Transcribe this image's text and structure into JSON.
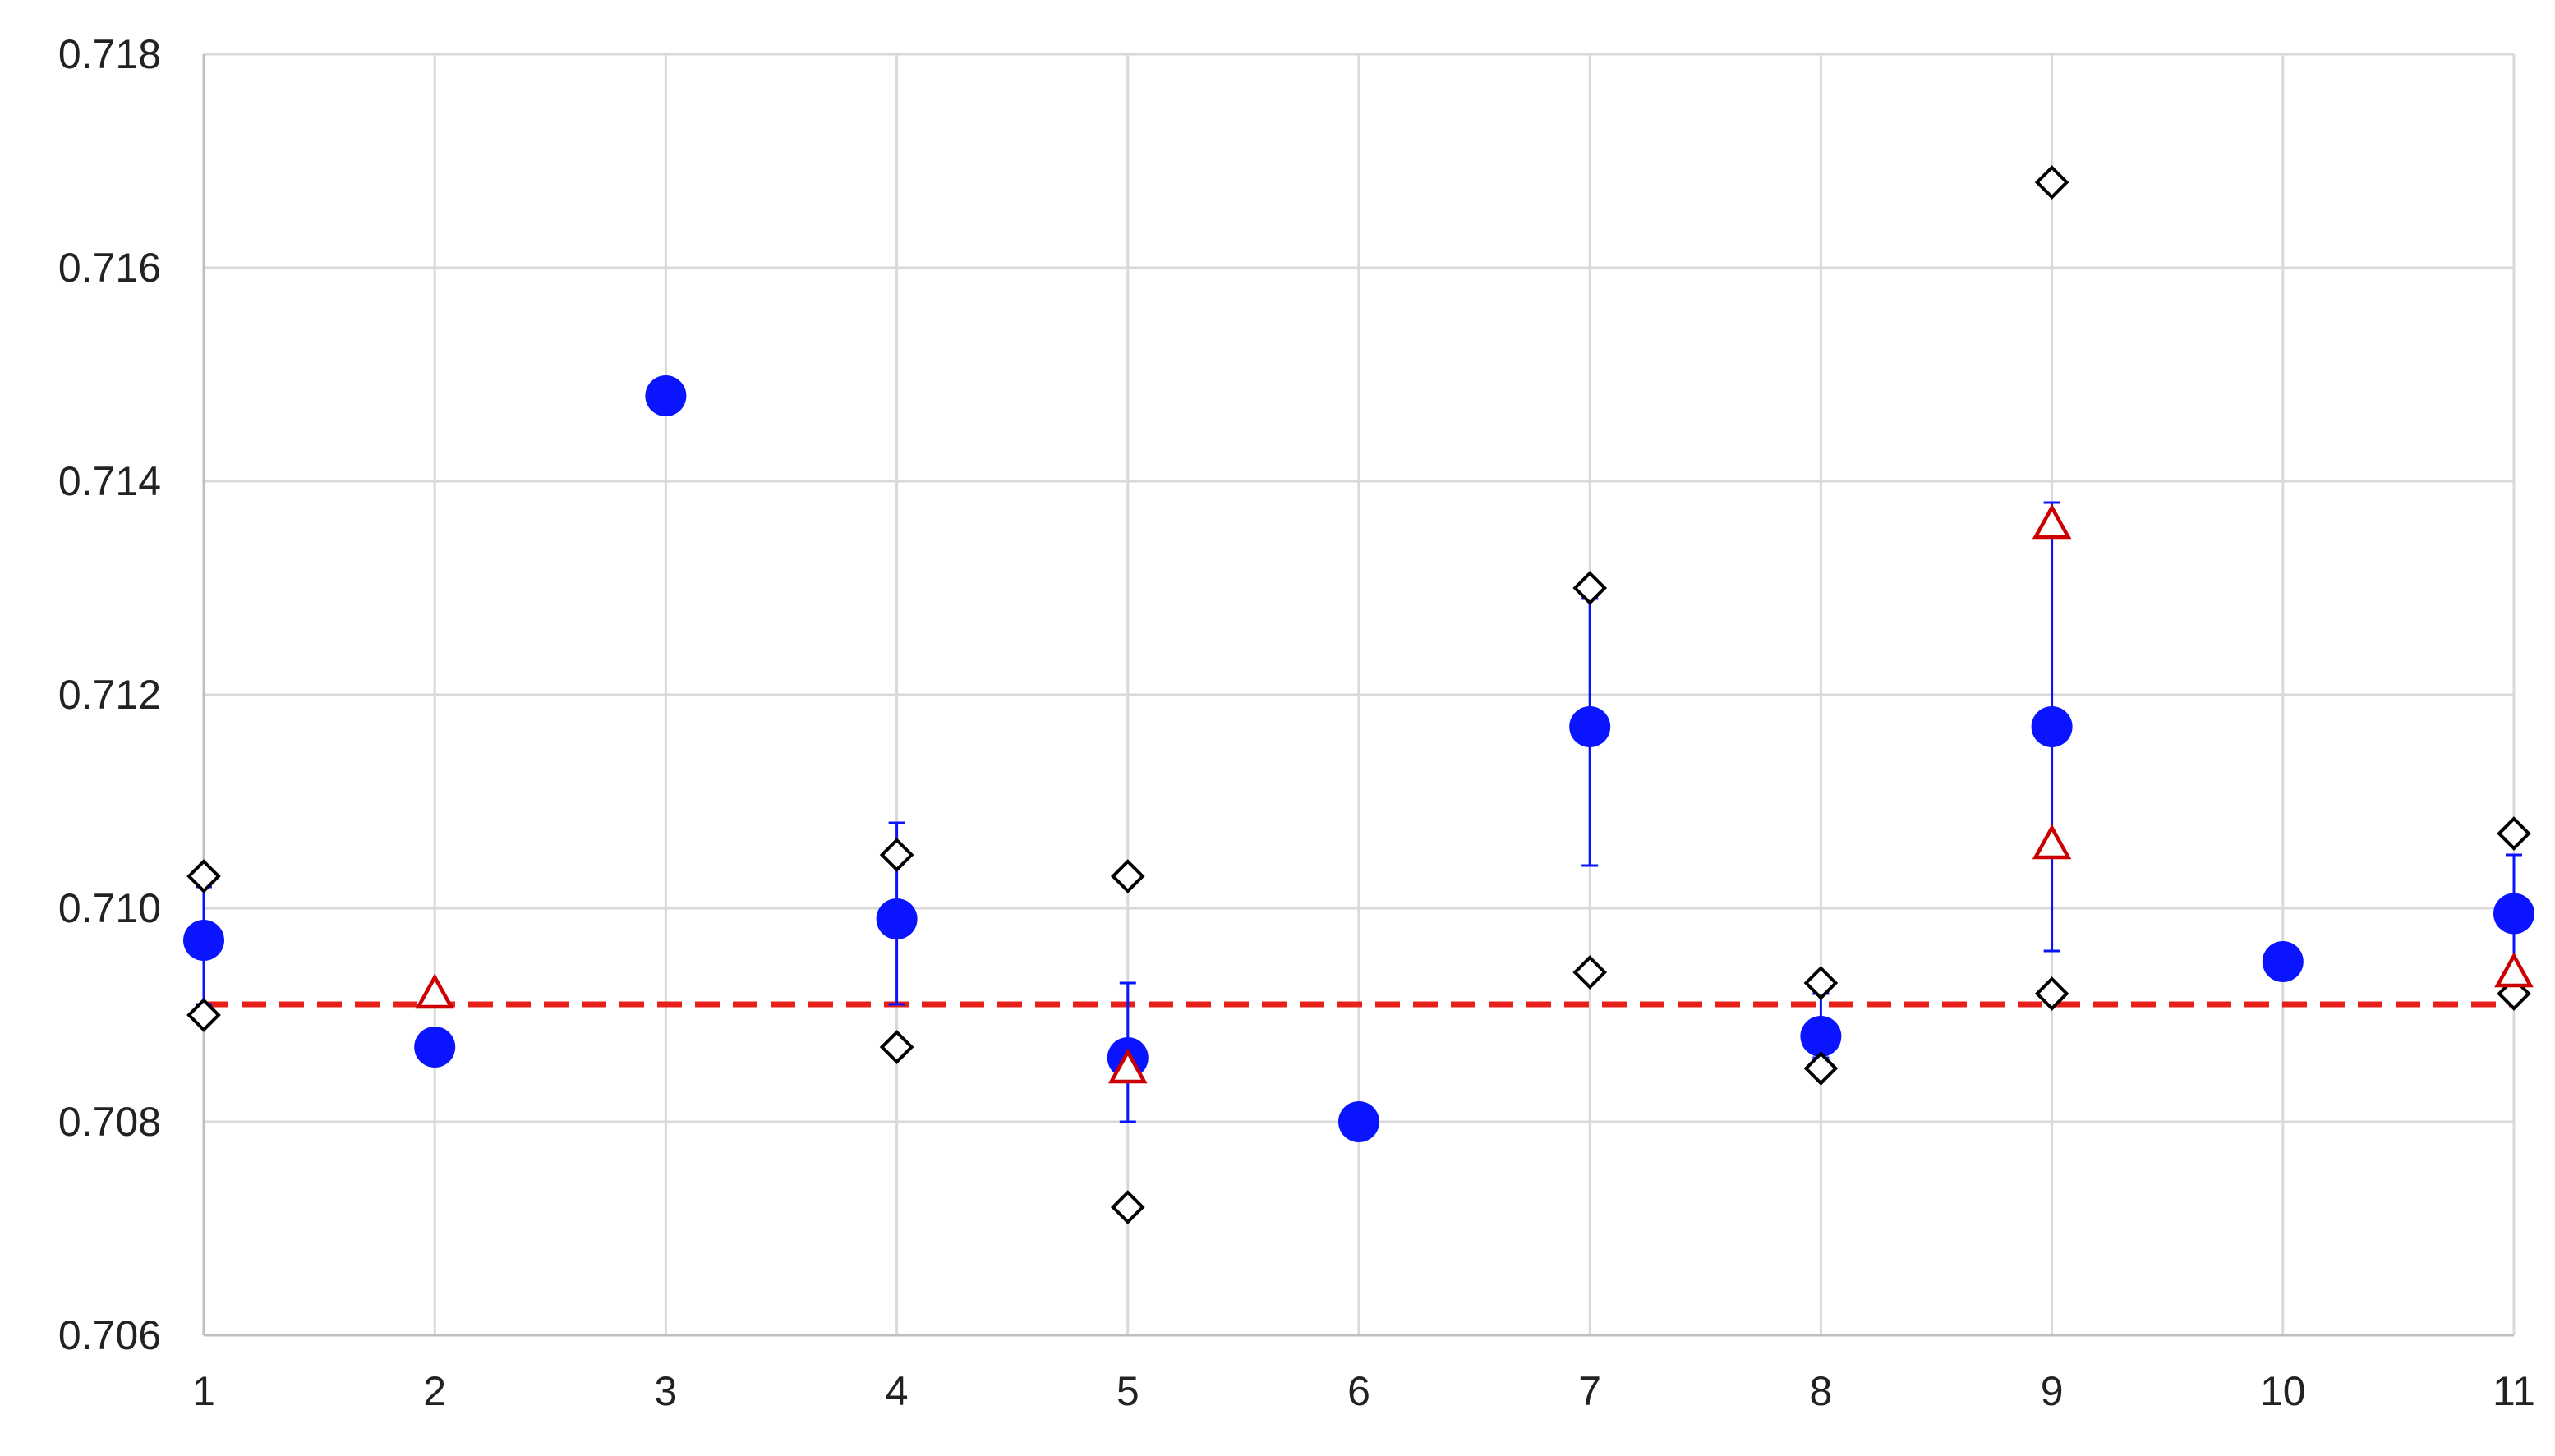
{
  "chart_data": {
    "type": "scatter",
    "title": "",
    "xlabel": "",
    "ylabel": "",
    "xlim": [
      1,
      11
    ],
    "ylim": [
      0.706,
      0.718
    ],
    "x_ticks": [
      1,
      2,
      3,
      4,
      5,
      6,
      7,
      8,
      9,
      10,
      11
    ],
    "y_ticks": [
      0.706,
      0.708,
      0.71,
      0.712,
      0.714,
      0.716,
      0.718
    ],
    "x_tick_labels": [
      "1",
      "2",
      "3",
      "4",
      "5",
      "6",
      "7",
      "8",
      "9",
      "10",
      "11"
    ],
    "y_tick_labels": [
      "0.706",
      "0.708",
      "0.710",
      "0.712",
      "0.714",
      "0.716",
      "0.718"
    ],
    "grid": true,
    "legend": "none",
    "reference_line": {
      "y": 0.7091,
      "style": "dashed",
      "color": "#e8201a"
    },
    "series": [
      {
        "marker": "filled-circle",
        "color": "#0a14ff",
        "points": [
          {
            "x": 1,
            "y": 0.7097,
            "err_low": 0.7091,
            "err_high": 0.7102
          },
          {
            "x": 2,
            "y": 0.7087
          },
          {
            "x": 3,
            "y": 0.7148
          },
          {
            "x": 4,
            "y": 0.7099,
            "err_low": 0.7091,
            "err_high": 0.7108
          },
          {
            "x": 5,
            "y": 0.7086,
            "err_low": 0.708,
            "err_high": 0.7093
          },
          {
            "x": 6,
            "y": 0.708
          },
          {
            "x": 7,
            "y": 0.7117,
            "err_low": 0.7104,
            "err_high": 0.7129
          },
          {
            "x": 8,
            "y": 0.7088,
            "err_low": 0.7086,
            "err_high": 0.7092
          },
          {
            "x": 9,
            "y": 0.7117,
            "err_low": 0.7096,
            "err_high": 0.7138
          },
          {
            "x": 10,
            "y": 0.7095
          },
          {
            "x": 11,
            "y": 0.70995,
            "err_low": 0.7094,
            "err_high": 0.7105
          }
        ]
      },
      {
        "marker": "open-diamond",
        "color": "#000000",
        "points": [
          {
            "x": 1,
            "y": 0.7103
          },
          {
            "x": 1,
            "y": 0.709
          },
          {
            "x": 4,
            "y": 0.7105
          },
          {
            "x": 4,
            "y": 0.7087
          },
          {
            "x": 5,
            "y": 0.7103
          },
          {
            "x": 5,
            "y": 0.7072
          },
          {
            "x": 7,
            "y": 0.713
          },
          {
            "x": 7,
            "y": 0.7094
          },
          {
            "x": 8,
            "y": 0.7093
          },
          {
            "x": 8,
            "y": 0.7085
          },
          {
            "x": 9,
            "y": 0.7168
          },
          {
            "x": 9,
            "y": 0.7092
          },
          {
            "x": 11,
            "y": 0.7107
          },
          {
            "x": 11,
            "y": 0.7092
          }
        ]
      },
      {
        "marker": "open-triangle",
        "color": "#cc0000",
        "points": [
          {
            "x": 2,
            "y": 0.7092
          },
          {
            "x": 5,
            "y": 0.7085
          },
          {
            "x": 9,
            "y": 0.7136
          },
          {
            "x": 9,
            "y": 0.7106
          },
          {
            "x": 11,
            "y": 0.7094
          }
        ]
      }
    ]
  }
}
